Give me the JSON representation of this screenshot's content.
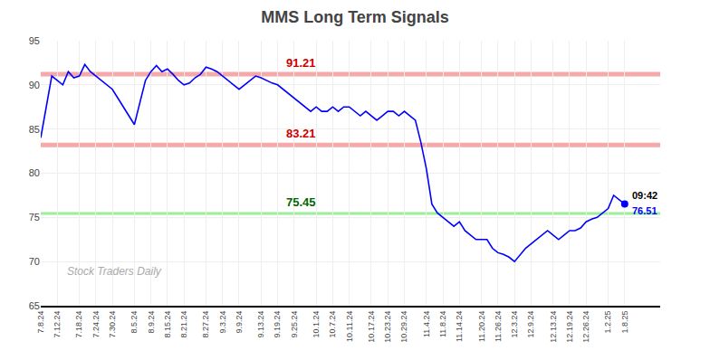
{
  "chart_data": {
    "type": "line",
    "title": "MMS Long Term Signals",
    "categories": [
      "7.8.24",
      null,
      null,
      "7.12.24",
      null,
      null,
      null,
      "7.18.24",
      null,
      null,
      "7.24.24",
      null,
      null,
      "7.30.24",
      null,
      null,
      null,
      "8.5.24",
      null,
      null,
      "8.9.24",
      null,
      null,
      "8.15.24",
      null,
      null,
      "8.21.24",
      null,
      null,
      null,
      "8.27.24",
      null,
      null,
      "9.3.24",
      null,
      null,
      "9.9.24",
      null,
      null,
      null,
      "9.13.24",
      null,
      null,
      "9.19.24",
      null,
      null,
      "9.25.24",
      null,
      null,
      null,
      "10.1.24",
      null,
      null,
      "10.7.24",
      null,
      null,
      "10.11.24",
      null,
      null,
      null,
      "10.17.24",
      null,
      null,
      "10.23.24",
      null,
      null,
      "10.29.24",
      null,
      null,
      null,
      "11.4.24",
      null,
      null,
      "11.8.24",
      null,
      null,
      "11.14.24",
      null,
      null,
      null,
      "11.20.24",
      null,
      null,
      "11.26.24",
      null,
      null,
      "12.3.24",
      null,
      null,
      "12.9.24",
      null,
      null,
      null,
      "12.13.24",
      null,
      null,
      "12.19.24",
      null,
      null,
      "12.26.24",
      null,
      null,
      null,
      "1.2.25",
      null,
      null,
      "1.8.25"
    ],
    "values": [
      84.0,
      87.5,
      91.0,
      90.5,
      90.0,
      91.5,
      90.8,
      91.0,
      92.3,
      91.5,
      91.0,
      90.5,
      90.0,
      89.5,
      88.5,
      87.5,
      86.5,
      85.5,
      88.0,
      90.5,
      91.5,
      92.2,
      91.5,
      91.8,
      91.2,
      90.5,
      90.0,
      90.2,
      90.8,
      91.2,
      92.0,
      91.8,
      91.5,
      91.0,
      90.5,
      90.0,
      89.5,
      90.0,
      90.5,
      91.0,
      90.8,
      90.5,
      90.2,
      90.0,
      89.5,
      89.0,
      88.5,
      88.0,
      87.5,
      87.0,
      87.5,
      87.0,
      87.0,
      87.5,
      87.0,
      87.5,
      87.5,
      87.0,
      86.5,
      87.0,
      86.5,
      86.0,
      86.5,
      87.0,
      87.0,
      86.5,
      87.0,
      86.5,
      86.0,
      83.5,
      80.5,
      76.5,
      75.5,
      75.0,
      74.5,
      74.0,
      74.5,
      73.5,
      73.0,
      72.5,
      72.5,
      72.5,
      71.5,
      71.0,
      70.8,
      70.5,
      70.0,
      70.8,
      71.5,
      72.0,
      72.5,
      73.0,
      73.5,
      73.0,
      72.5,
      73.0,
      73.5,
      73.5,
      73.8,
      74.5,
      74.8,
      75.0,
      75.5,
      76.0,
      77.5,
      77.0,
      76.51
    ],
    "color": "blue",
    "marker": "circle",
    "hlines": [
      {
        "value": 91.21,
        "label": "91.21",
        "color": "#f4a0a0",
        "label_color": "#cc0000"
      },
      {
        "value": 83.21,
        "label": "83.21",
        "color": "#f4a0a0",
        "label_color": "#cc0000"
      },
      {
        "value": 75.45,
        "label": "75.45",
        "color": "#90ee90",
        "label_color": "#006600"
      }
    ],
    "last_point_labels": [
      {
        "text": "09:42",
        "color": "black"
      },
      {
        "text": "76.51",
        "color": "blue"
      }
    ],
    "watermark": {
      "text": "Stock Traders Daily",
      "color": "#aaaaaa"
    },
    "ylim": [
      65,
      95
    ],
    "yticks": [
      65,
      70,
      75,
      80,
      85,
      90,
      95
    ],
    "grid": true
  }
}
